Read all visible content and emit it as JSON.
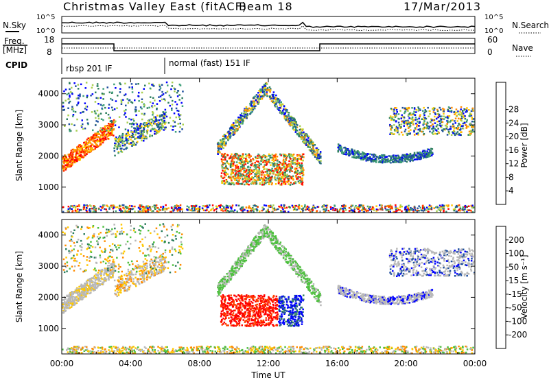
{
  "header": {
    "title": "Christmas Valley East (fitACF)",
    "beam": "Beam 18",
    "date": "17/Mar/2013"
  },
  "nsky_panel": {
    "left_label": "N.Sky",
    "right_label": "N.Search",
    "left_ticks": [
      "10^5",
      "10^0"
    ],
    "right_ticks": [
      "10^5",
      "10^0"
    ]
  },
  "freq_panel": {
    "left_label_line1": "Freq.",
    "left_label_line2": "[MHz]",
    "left_ticks": [
      "18",
      "8"
    ],
    "right_ticks": [
      "60",
      "0"
    ],
    "right_label": "Nave"
  },
  "cpid_panel": {
    "label": "CPID",
    "modes": [
      "rbsp 201 IF",
      "normal (fast) 151 IF"
    ]
  },
  "chart_data": [
    {
      "type": "heatmap",
      "name": "power-panel",
      "ylabel": "Slant Range [km]",
      "x_ticks": [
        "00:00",
        "04:00",
        "08:00",
        "12:00",
        "16:00",
        "20:00",
        "00:00"
      ],
      "y_ticks": [
        1000,
        2000,
        3000,
        4000
      ],
      "ylim": [
        180,
        4500
      ],
      "colorbar": {
        "label": "Power [dB]",
        "ticks": [
          "4",
          "8",
          "12",
          "16",
          "20",
          "24",
          "28"
        ],
        "colors": [
          "#0000ff",
          "#1f4f9f",
          "#2e7f5f",
          "#3fa07a",
          "#a8d050",
          "#ffc800",
          "#ff8c00",
          "#ff4000",
          "#ff0000"
        ]
      }
    },
    {
      "type": "heatmap",
      "name": "velocity-panel",
      "ylabel": "Slant Range [km]",
      "xlabel": "Time UT",
      "x_ticks": [
        "00:00",
        "04:00",
        "08:00",
        "12:00",
        "16:00",
        "20:00",
        "00:00"
      ],
      "y_ticks": [
        1000,
        2000,
        3000,
        4000
      ],
      "ylim": [
        180,
        4500
      ],
      "colorbar": {
        "label": "Velocity [m s⁻¹]",
        "ticks": [
          "200",
          "100",
          "50",
          "15",
          "-15",
          "-50",
          "-100",
          "-200"
        ],
        "colors": [
          "#0000ff",
          "#1f4f9f",
          "#2e7f5f",
          "#4fc040",
          "#b8b8b8",
          "#ffc800",
          "#ff8c00",
          "#ff4000",
          "#ff0000"
        ]
      }
    }
  ]
}
